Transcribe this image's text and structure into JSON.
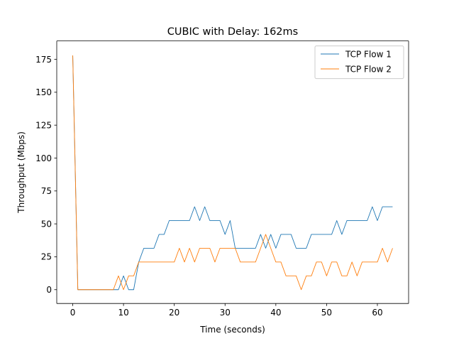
{
  "chart_data": {
    "type": "line",
    "title": "CUBIC with Delay: 162ms",
    "xlabel": "Time (seconds)",
    "ylabel": "Throughput (Mbps)",
    "xlim": [
      -3.15,
      66.15
    ],
    "ylim": [
      -10.5,
      189
    ],
    "xticks": [
      0,
      10,
      20,
      30,
      40,
      50,
      60
    ],
    "yticks": [
      0,
      25,
      50,
      75,
      100,
      125,
      150,
      175
    ],
    "grid": false,
    "legend_position": "top-right",
    "x": [
      0,
      1,
      2,
      3,
      4,
      5,
      6,
      7,
      8,
      9,
      10,
      11,
      12,
      13,
      14,
      15,
      16,
      17,
      18,
      19,
      20,
      21,
      22,
      23,
      24,
      25,
      26,
      27,
      28,
      29,
      30,
      31,
      32,
      33,
      34,
      35,
      36,
      37,
      38,
      39,
      40,
      41,
      42,
      43,
      44,
      45,
      46,
      47,
      48,
      49,
      50,
      51,
      52,
      53,
      54,
      55,
      56,
      57,
      58,
      59,
      60,
      61,
      62,
      63
    ],
    "series": [
      {
        "name": "TCP Flow 1",
        "color": "#1f77b4",
        "values": [
          178,
          0,
          0,
          0,
          0,
          0,
          0,
          0,
          0,
          0,
          10.5,
          0,
          0,
          21,
          31.5,
          31.5,
          31.5,
          42,
          42,
          52.5,
          52.5,
          52.5,
          52.5,
          52.5,
          63,
          52.5,
          63,
          52.5,
          52.5,
          52.5,
          42,
          52.5,
          31.5,
          31.5,
          31.5,
          31.5,
          31.5,
          42,
          31.5,
          42,
          31.5,
          42,
          42,
          42,
          31.5,
          31.5,
          31.5,
          42,
          42,
          42,
          42,
          42,
          52.5,
          42,
          52.5,
          52.5,
          52.5,
          52.5,
          52.5,
          63,
          52.5,
          63,
          63,
          63
        ]
      },
      {
        "name": "TCP Flow 2",
        "color": "#ff7f0e",
        "values": [
          178,
          0,
          0,
          0,
          0,
          0,
          0,
          0,
          0,
          10.5,
          0,
          10.5,
          10.5,
          21,
          21,
          21,
          21,
          21,
          21,
          21,
          21,
          31.5,
          21,
          31.5,
          21,
          31.5,
          31.5,
          31.5,
          21,
          31.5,
          31.5,
          31.5,
          31.5,
          21,
          21,
          21,
          21,
          31.5,
          42,
          31.5,
          21,
          21,
          10.5,
          10.5,
          10.5,
          0,
          10.5,
          10.5,
          21,
          21,
          10.5,
          21,
          21,
          10.5,
          10.5,
          21,
          10.5,
          21,
          21,
          21,
          21,
          31.5,
          21,
          31.5
        ]
      }
    ]
  }
}
